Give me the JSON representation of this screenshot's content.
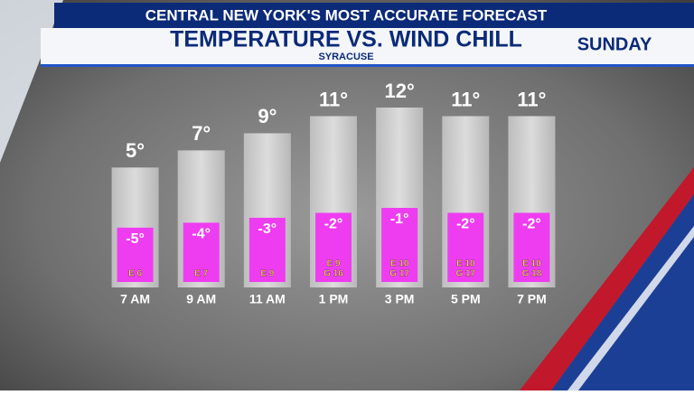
{
  "header": "CENTRAL NEW YORK'S MOST ACCURATE FORECAST",
  "day": "SUNDAY",
  "chart_data": {
    "type": "bar",
    "title": "TEMPERATURE VS. WIND CHILL",
    "subtitle": "SYRACUSE",
    "categories": [
      "7 AM",
      "9 AM",
      "11 AM",
      "1 PM",
      "3 PM",
      "5 PM",
      "7 PM"
    ],
    "ylim": [
      -9,
      12
    ],
    "y2lim": [
      -16,
      -1
    ],
    "series": [
      {
        "color": "#d3d3d3",
        "values": [
          5,
          7,
          9,
          11,
          12,
          11,
          11
        ],
        "value_labels": [
          "5°",
          "7°",
          "9°",
          "11°",
          "12°",
          "11°",
          "11°"
        ]
      },
      {
        "color": "#ee3df0",
        "axis": "y2",
        "values": [
          -5,
          -4,
          -3,
          -2,
          -1,
          -2,
          -2
        ],
        "value_labels": [
          "-5°",
          "-4°",
          "-3°",
          "-2°",
          "-1°",
          "-2°",
          "-2°"
        ]
      }
    ],
    "wind_labels": [
      [
        "E 6"
      ],
      [
        "E 7"
      ],
      [
        "E 9"
      ],
      [
        "E 9",
        "G 16"
      ],
      [
        "E 10",
        "G 17"
      ],
      [
        "E 10",
        "G 17"
      ],
      [
        "E 10",
        "G 18"
      ]
    ]
  }
}
